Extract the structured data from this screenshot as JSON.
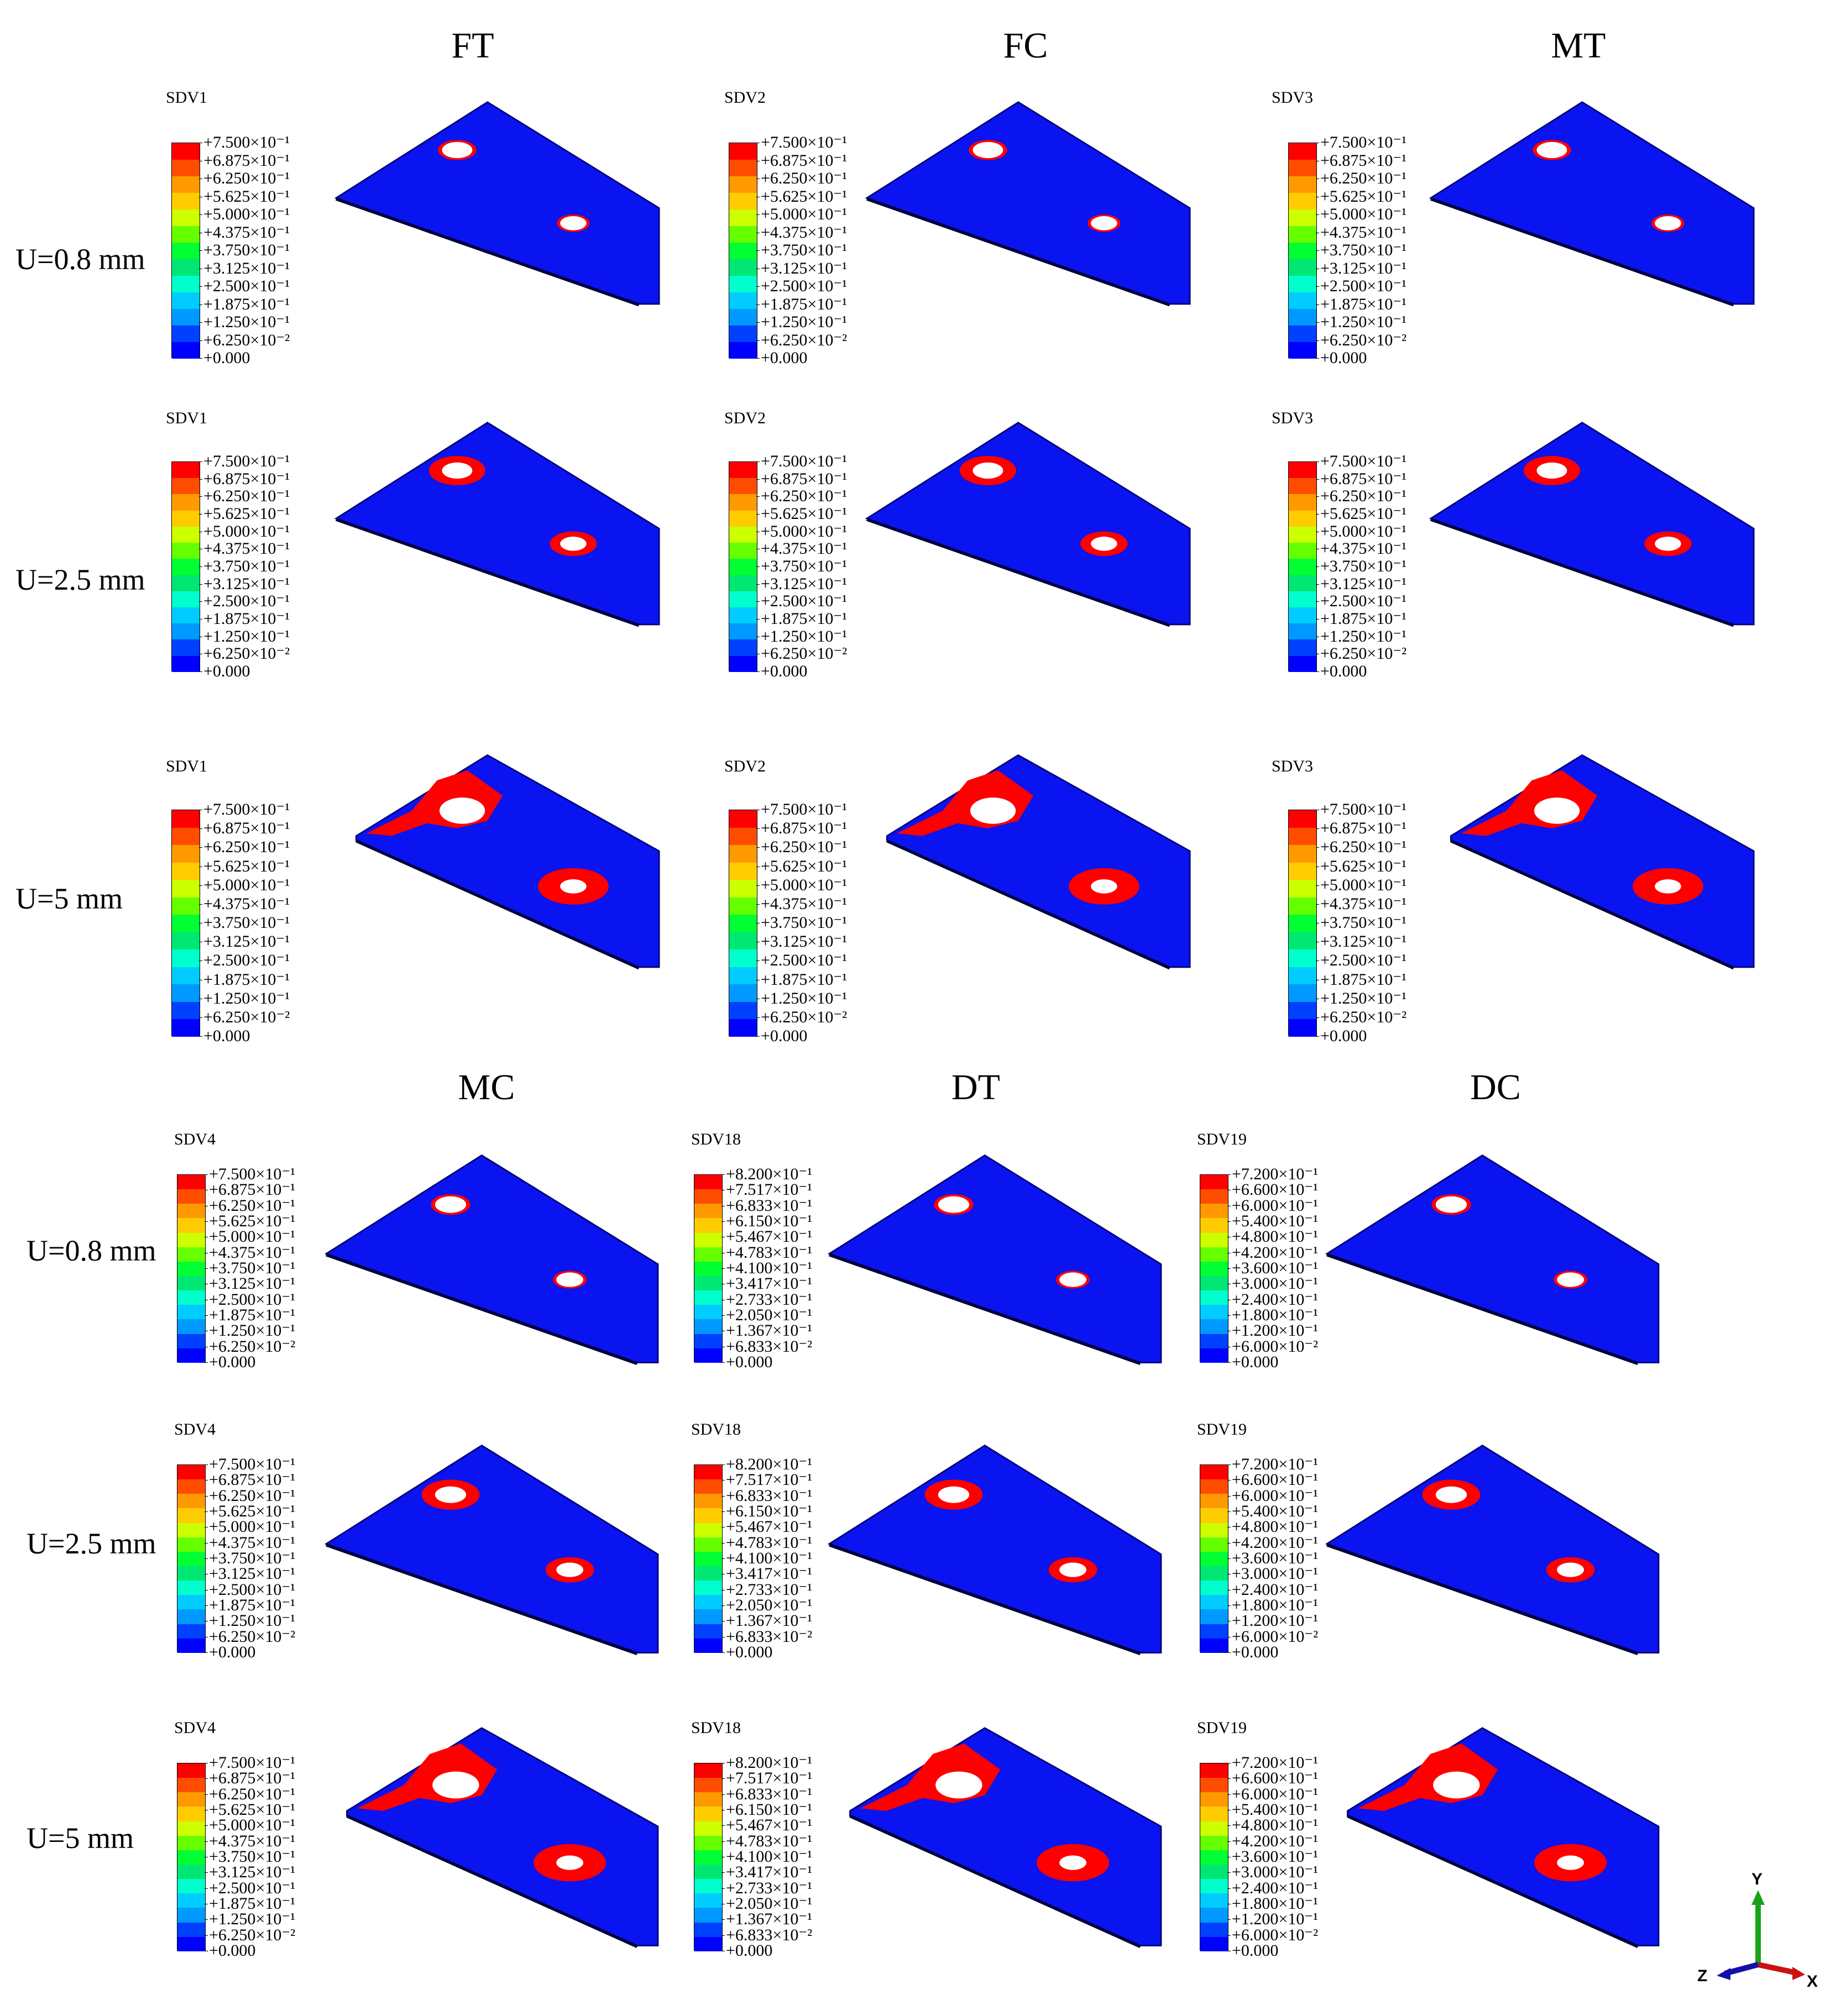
{
  "modes": [
    "FT",
    "FC",
    "MT",
    "MC",
    "DT",
    "DC"
  ],
  "row_labels": [
    "U=0.8 mm",
    "U=2.5 mm",
    "U=5 mm",
    "U=0.8 mm",
    "U=2.5 mm",
    "U=5 mm"
  ],
  "legends": {
    "SDV1": [
      "+7.500×10⁻¹",
      "+6.875×10⁻¹",
      "+6.250×10⁻¹",
      "+5.625×10⁻¹",
      "+5.000×10⁻¹",
      "+4.375×10⁻¹",
      "+3.750×10⁻¹",
      "+3.125×10⁻¹",
      "+2.500×10⁻¹",
      "+1.875×10⁻¹",
      "+1.250×10⁻¹",
      "+6.250×10⁻²",
      "+0.000"
    ],
    "SDV18": [
      "+8.200×10⁻¹",
      "+7.517×10⁻¹",
      "+6.833×10⁻¹",
      "+6.150×10⁻¹",
      "+5.467×10⁻¹",
      "+4.783×10⁻¹",
      "+4.100×10⁻¹",
      "+3.417×10⁻¹",
      "+2.733×10⁻¹",
      "+2.050×10⁻¹",
      "+1.367×10⁻¹",
      "+6.833×10⁻²",
      "+0.000"
    ],
    "SDV19": [
      "+7.200×10⁻¹",
      "+6.600×10⁻¹",
      "+6.000×10⁻¹",
      "+5.400×10⁻¹",
      "+4.800×10⁻¹",
      "+4.200×10⁻¹",
      "+3.600×10⁻¹",
      "+3.000×10⁻¹",
      "+2.400×10⁻¹",
      "+1.800×10⁻¹",
      "+1.200×10⁻¹",
      "+6.000×10⁻²",
      "+0.000"
    ]
  },
  "colormap": [
    "#ff0000",
    "#ff4d00",
    "#ff9900",
    "#ffcc00",
    "#ccff00",
    "#66ff00",
    "#00ff33",
    "#00e673",
    "#00ffcc",
    "#00ccff",
    "#0099ff",
    "#0040ff",
    "#0000ff"
  ],
  "plate_color": "#0a14f0",
  "damage_color": "#ff0000",
  "panels": [
    {
      "sdv": "SDV1",
      "level": 0
    },
    {
      "sdv": "SDV2",
      "level": 0
    },
    {
      "sdv": "SDV3",
      "level": 0
    },
    {
      "sdv": "SDV1",
      "level": 1
    },
    {
      "sdv": "SDV2",
      "level": 1
    },
    {
      "sdv": "SDV3",
      "level": 1
    },
    {
      "sdv": "SDV1",
      "level": 2
    },
    {
      "sdv": "SDV2",
      "level": 2
    },
    {
      "sdv": "SDV3",
      "level": 2
    },
    {
      "sdv": "SDV4",
      "level": 0
    },
    {
      "sdv": "SDV18",
      "level": 0
    },
    {
      "sdv": "SDV19",
      "level": 0
    },
    {
      "sdv": "SDV4",
      "level": 1
    },
    {
      "sdv": "SDV18",
      "level": 1
    },
    {
      "sdv": "SDV19",
      "level": 1
    },
    {
      "sdv": "SDV4",
      "level": 2
    },
    {
      "sdv": "SDV18",
      "level": 2
    },
    {
      "sdv": "SDV19",
      "level": 2
    }
  ],
  "axis": {
    "y": "Y",
    "z": "Z",
    "x": "X"
  }
}
